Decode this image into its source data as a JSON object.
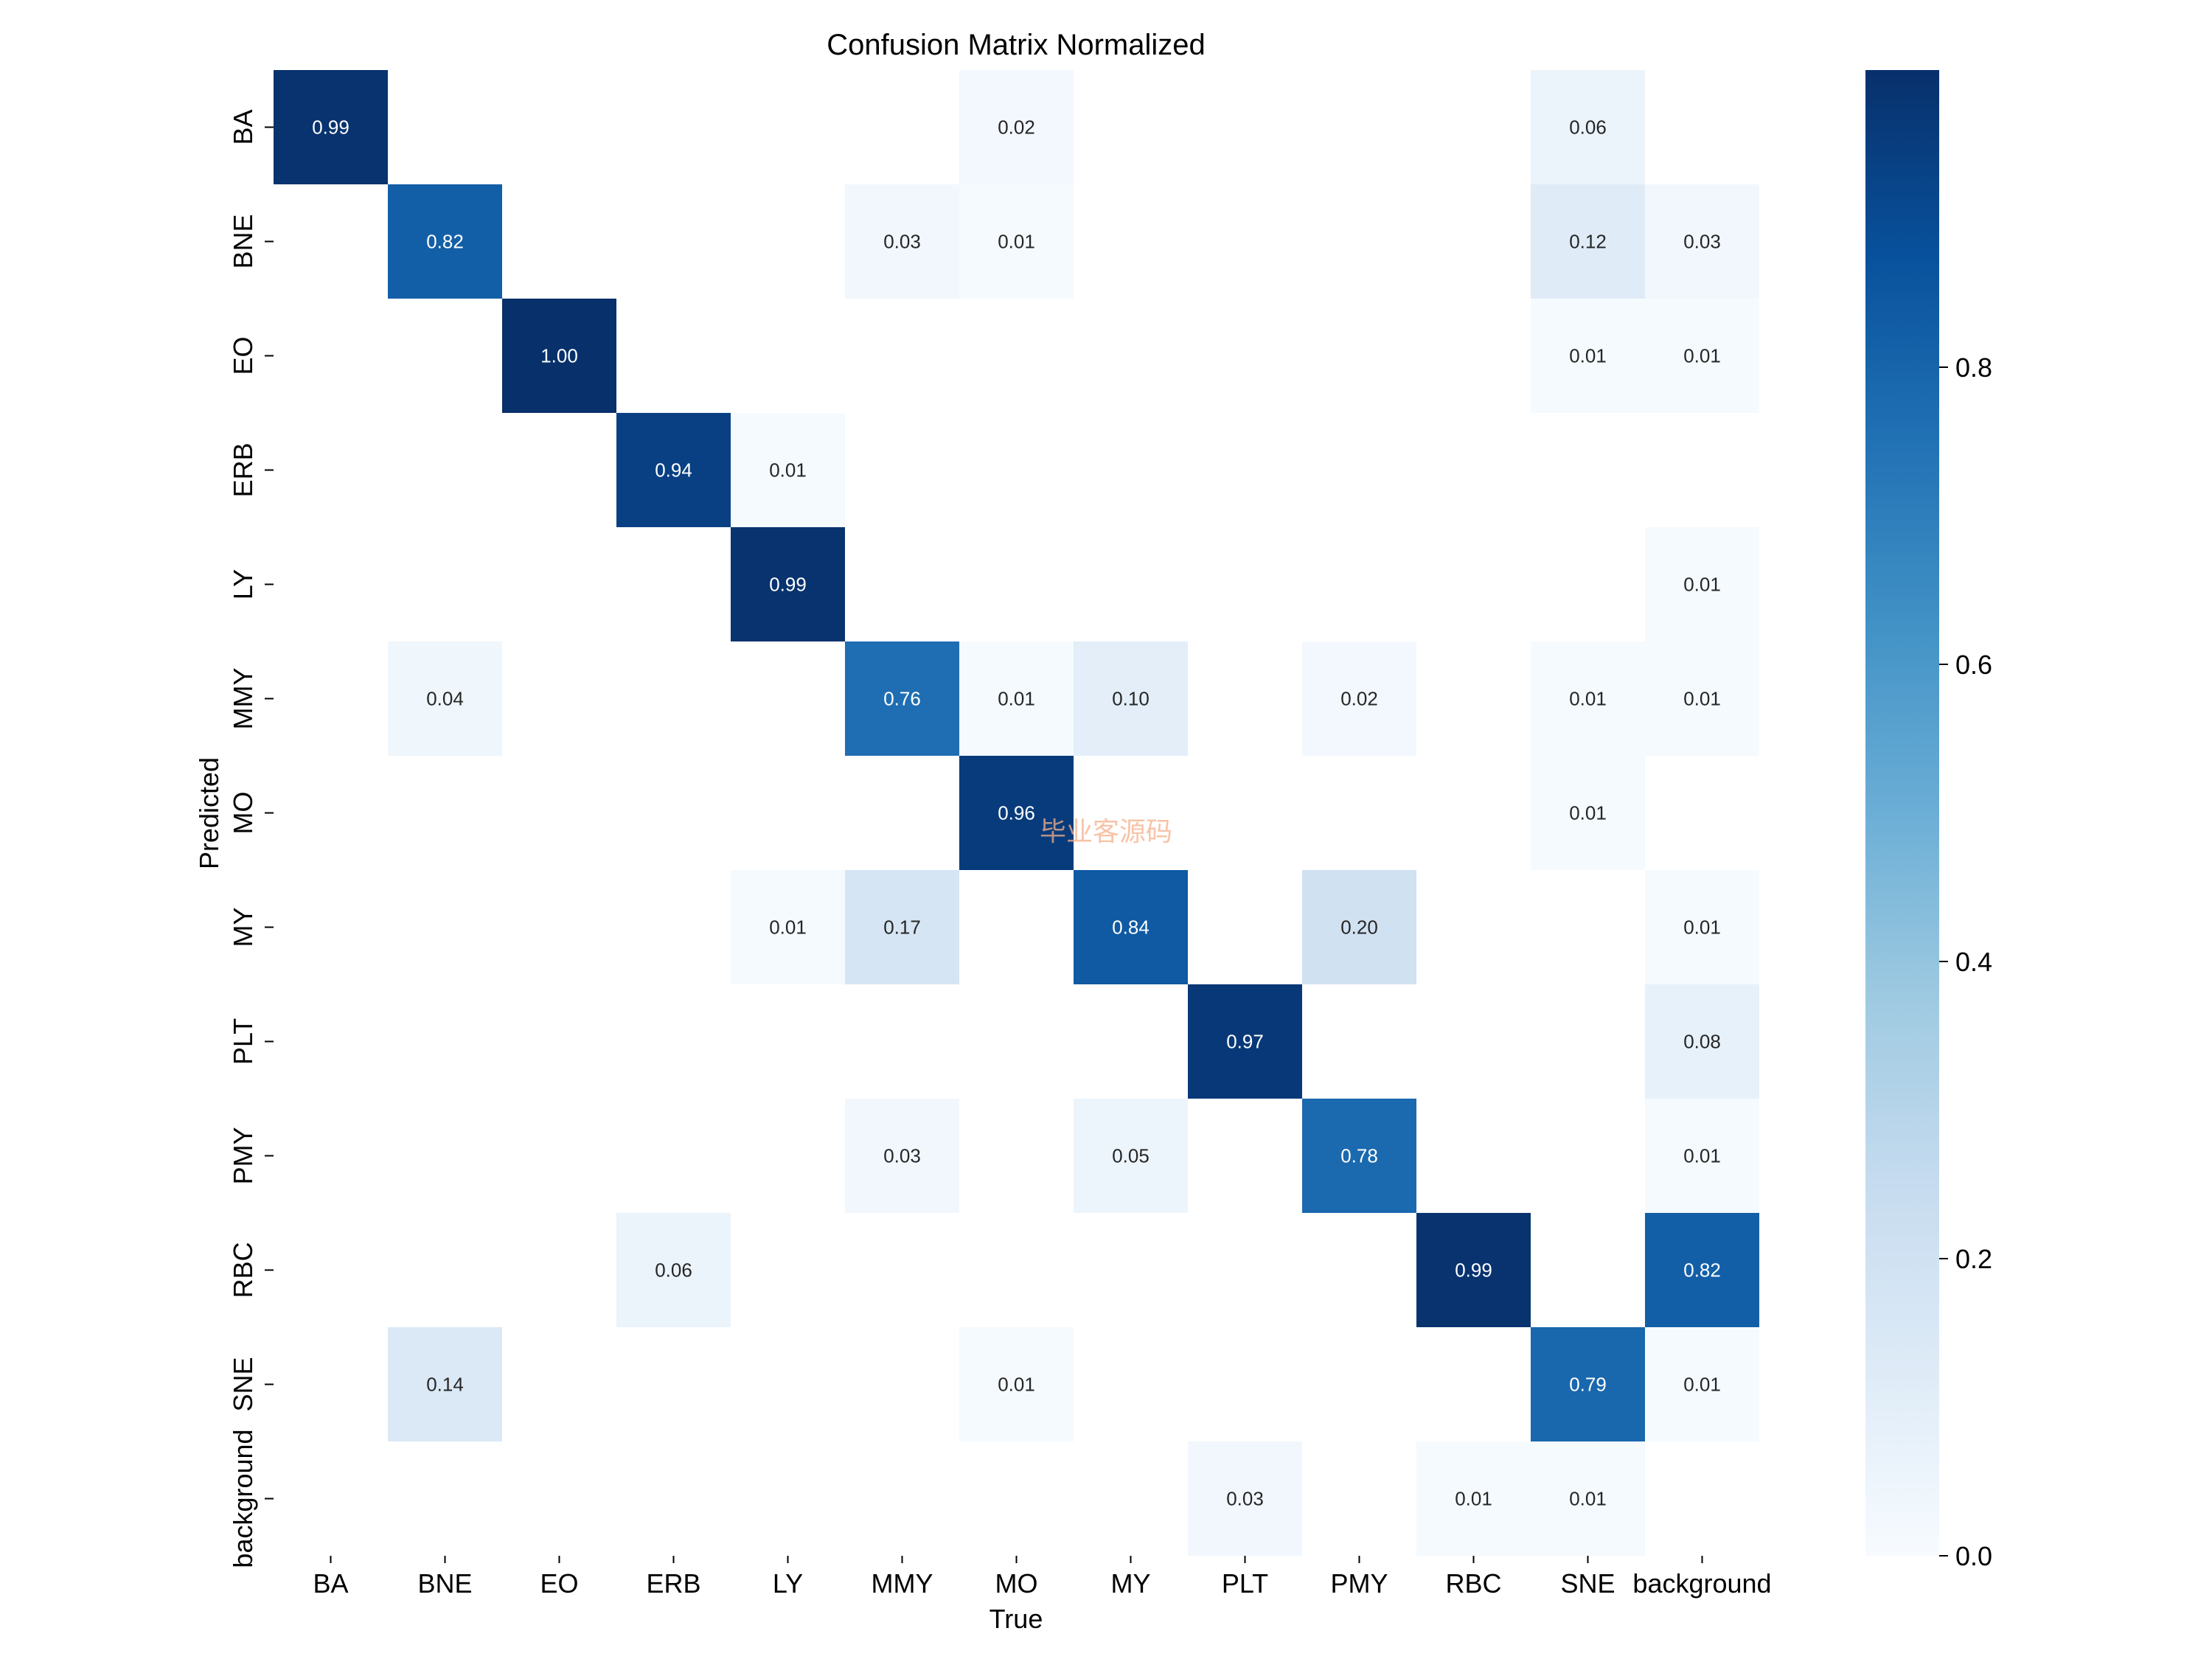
{
  "chart_data": {
    "type": "heatmap",
    "title": "Confusion Matrix Normalized",
    "xlabel": "True",
    "ylabel": "Predicted",
    "x_categories": [
      "BA",
      "BNE",
      "EO",
      "ERB",
      "LY",
      "MMY",
      "MO",
      "MY",
      "PLT",
      "PMY",
      "RBC",
      "SNE",
      "background"
    ],
    "y_categories": [
      "BA",
      "BNE",
      "EO",
      "ERB",
      "LY",
      "MMY",
      "MO",
      "MY",
      "PLT",
      "PMY",
      "RBC",
      "SNE",
      "background"
    ],
    "values": [
      [
        0.99,
        null,
        null,
        null,
        null,
        null,
        0.02,
        null,
        null,
        null,
        null,
        0.06,
        null
      ],
      [
        null,
        0.82,
        null,
        null,
        null,
        0.03,
        0.01,
        null,
        null,
        null,
        null,
        0.12,
        0.03
      ],
      [
        null,
        null,
        1.0,
        null,
        null,
        null,
        null,
        null,
        null,
        null,
        null,
        0.01,
        0.01
      ],
      [
        null,
        null,
        null,
        0.94,
        0.01,
        null,
        null,
        null,
        null,
        null,
        null,
        null,
        null
      ],
      [
        null,
        null,
        null,
        null,
        0.99,
        null,
        null,
        null,
        null,
        null,
        null,
        null,
        0.01
      ],
      [
        null,
        0.04,
        null,
        null,
        null,
        0.76,
        0.01,
        0.1,
        null,
        0.02,
        null,
        0.01,
        0.01
      ],
      [
        null,
        null,
        null,
        null,
        null,
        null,
        0.96,
        null,
        null,
        null,
        null,
        0.01,
        null
      ],
      [
        null,
        null,
        null,
        null,
        0.01,
        0.17,
        null,
        0.84,
        null,
        0.2,
        null,
        null,
        0.01
      ],
      [
        null,
        null,
        null,
        null,
        null,
        null,
        null,
        null,
        0.97,
        null,
        null,
        null,
        0.08
      ],
      [
        null,
        null,
        null,
        null,
        null,
        0.03,
        null,
        0.05,
        null,
        0.78,
        null,
        null,
        0.01
      ],
      [
        null,
        null,
        null,
        0.06,
        null,
        null,
        null,
        null,
        null,
        null,
        0.99,
        null,
        0.82
      ],
      [
        null,
        0.14,
        null,
        null,
        null,
        null,
        0.01,
        null,
        null,
        null,
        null,
        0.79,
        0.01
      ],
      [
        null,
        null,
        null,
        null,
        null,
        null,
        null,
        null,
        0.03,
        null,
        0.01,
        0.01,
        null
      ]
    ],
    "colormap": "Blues",
    "value_range": [
      0,
      1.0
    ],
    "colorbar_ticks": [
      0.0,
      0.2,
      0.4,
      0.6,
      0.8
    ],
    "grid": false,
    "colorbar_placement": "right"
  },
  "watermark": "毕业客源码"
}
